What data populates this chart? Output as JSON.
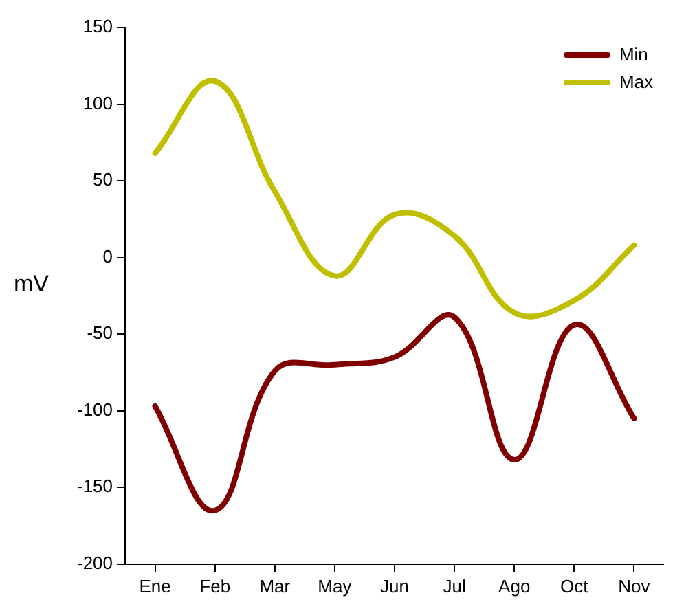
{
  "chart_data": {
    "type": "line",
    "ylabel": "mV",
    "categories": [
      "Ene",
      "Feb",
      "Mar",
      "May",
      "Jun",
      "Jul",
      "Ago",
      "Oct",
      "Nov"
    ],
    "series": [
      {
        "name": "Min",
        "color": "#800000",
        "values": [
          -97,
          -165,
          -74,
          -70,
          -65,
          -39,
          -132,
          -44,
          -105
        ]
      },
      {
        "name": "Max",
        "color": "#bfbf00",
        "values": [
          68,
          115,
          43,
          -12,
          28,
          14,
          -36,
          -28,
          8
        ]
      }
    ],
    "ylim": [
      -200,
      150
    ],
    "yticks": [
      -200,
      -150,
      -100,
      -50,
      0,
      50,
      100,
      150
    ],
    "grid": false,
    "legend": "top right",
    "marker": "none",
    "line_style": "solid"
  }
}
